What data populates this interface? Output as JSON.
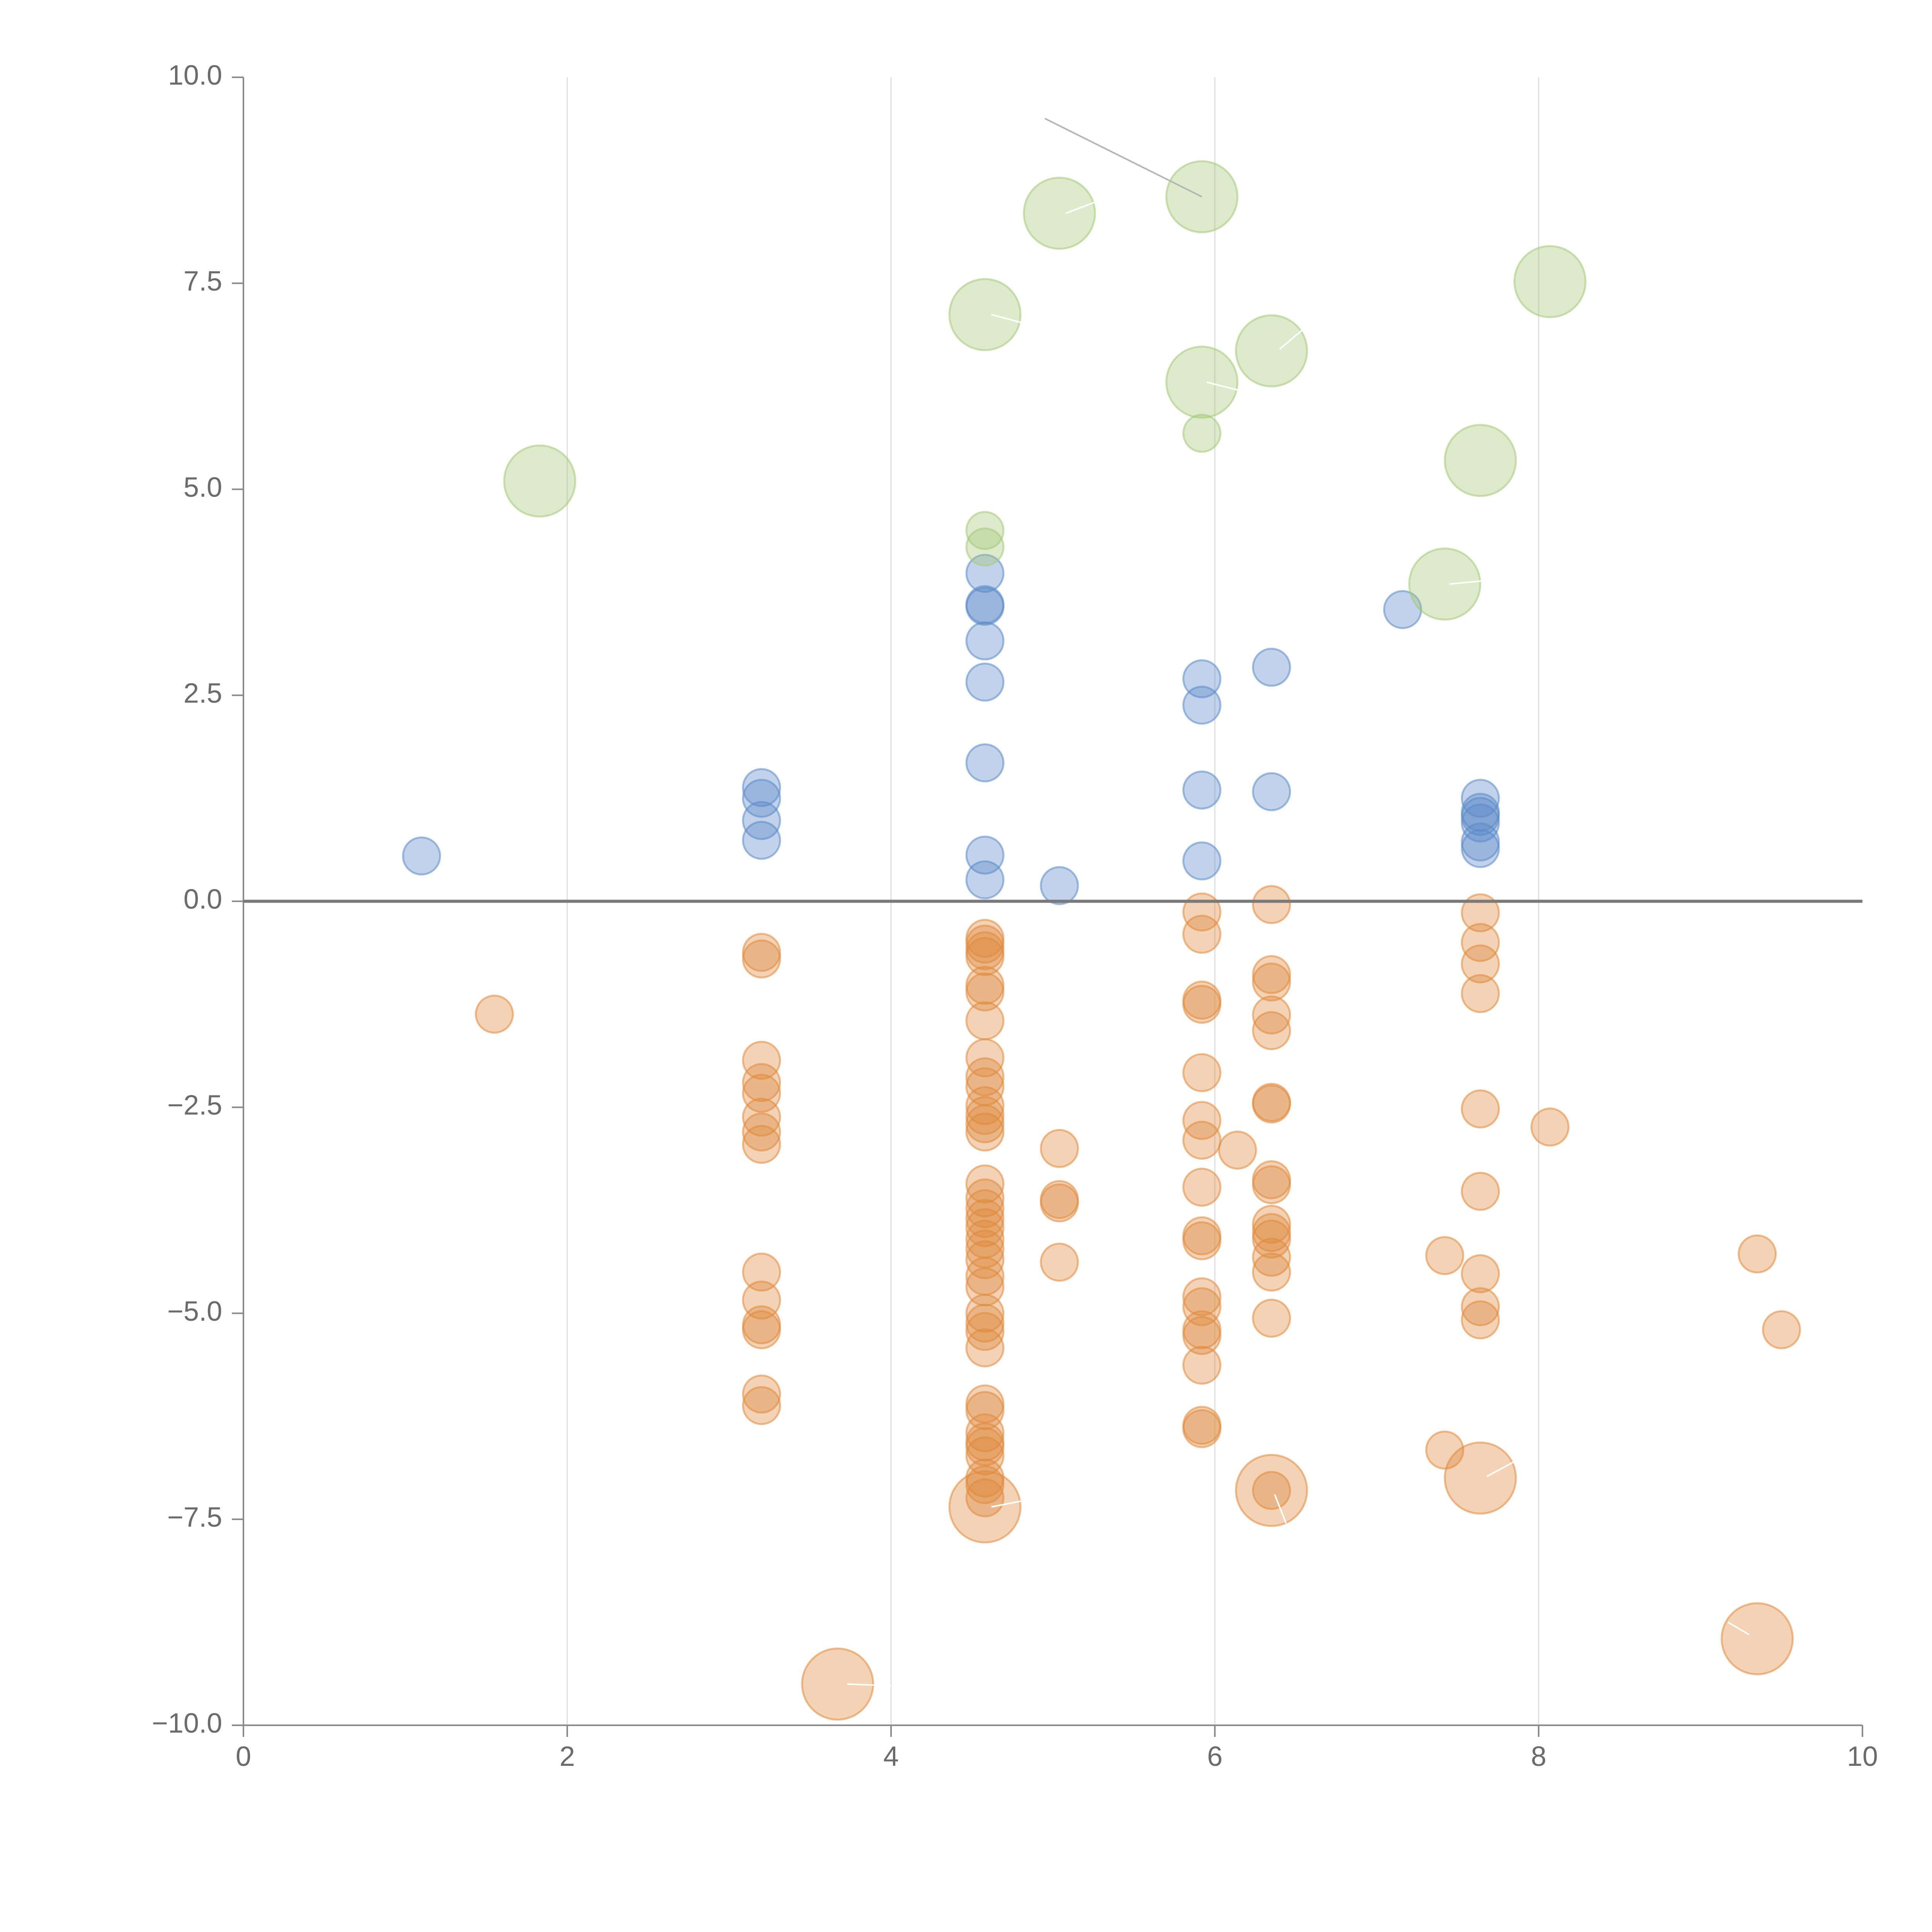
{
  "colors": {
    "positive": "#5b8ac9",
    "negative": "#e08a3c",
    "highlight": "#a6c97a",
    "grid": "#dedede",
    "axis": "#8a8a8a",
    "text": "#6b6b6b",
    "leader_gray": "#b4b4b4",
    "leader_white": "#ffffff"
  },
  "chart_data": {
    "type": "scatter",
    "title": "",
    "xlabel": "",
    "ylabel": "",
    "xlim": [
      0,
      10
    ],
    "ylim": [
      -10,
      10
    ],
    "x_ticks": [
      0,
      2,
      4,
      6,
      8,
      10
    ],
    "x_tick_labels": [
      "0",
      "2",
      "4",
      "6",
      "8",
      "10"
    ],
    "y_ticks": [
      10,
      7.5,
      5,
      2.5,
      0,
      -2.5,
      -5,
      -7.5,
      -10
    ],
    "y_tick_labels": [
      "10.0",
      "7.5",
      "5.0",
      "2.5",
      "0.0",
      "−2.5",
      "−5.0",
      "−7.5",
      "−10.0"
    ],
    "vertical_grid_at": [
      2,
      4,
      6,
      8
    ],
    "reference_line_y": 0,
    "series": [
      {
        "name": "positive",
        "color_key": "positive",
        "size": "small",
        "points": [
          [
            1.1,
            0.55
          ],
          [
            3.2,
            1.38
          ],
          [
            3.2,
            1.25
          ],
          [
            3.2,
            0.98
          ],
          [
            3.2,
            0.74
          ],
          [
            4.58,
            3.98
          ],
          [
            4.58,
            3.6
          ],
          [
            4.58,
            3.58
          ],
          [
            4.58,
            3.16
          ],
          [
            4.58,
            2.66
          ],
          [
            4.58,
            1.68
          ],
          [
            4.58,
            0.56
          ],
          [
            4.58,
            0.26
          ],
          [
            5.04,
            0.19
          ],
          [
            5.92,
            2.7
          ],
          [
            5.92,
            2.38
          ],
          [
            5.92,
            1.35
          ],
          [
            5.92,
            0.49
          ],
          [
            6.35,
            2.84
          ],
          [
            6.35,
            1.33
          ],
          [
            7.16,
            3.54
          ],
          [
            7.64,
            1.25
          ],
          [
            7.64,
            1.08
          ],
          [
            7.64,
            1.03
          ],
          [
            7.64,
            0.95
          ],
          [
            7.64,
            0.72
          ],
          [
            7.64,
            0.64
          ]
        ]
      },
      {
        "name": "negative",
        "color_key": "negative",
        "size": "small",
        "points": [
          [
            1.55,
            -1.37
          ],
          [
            3.2,
            -0.62
          ],
          [
            3.2,
            -0.7
          ],
          [
            3.2,
            -1.93
          ],
          [
            3.2,
            -2.2
          ],
          [
            3.2,
            -2.33
          ],
          [
            3.2,
            -2.62
          ],
          [
            3.2,
            -2.8
          ],
          [
            3.2,
            -2.95
          ],
          [
            3.2,
            -4.5
          ],
          [
            3.2,
            -4.84
          ],
          [
            3.2,
            -5.14
          ],
          [
            3.2,
            -5.2
          ],
          [
            3.2,
            -5.98
          ],
          [
            3.2,
            -6.12
          ],
          [
            4.58,
            -0.45
          ],
          [
            4.58,
            -0.52
          ],
          [
            4.58,
            -0.6
          ],
          [
            4.58,
            -0.67
          ],
          [
            4.58,
            -1.02
          ],
          [
            4.58,
            -1.1
          ],
          [
            4.58,
            -1.45
          ],
          [
            4.58,
            -1.9
          ],
          [
            4.58,
            -2.13
          ],
          [
            4.58,
            -2.25
          ],
          [
            4.58,
            -2.48
          ],
          [
            4.58,
            -2.6
          ],
          [
            4.58,
            -2.7
          ],
          [
            4.58,
            -2.8
          ],
          [
            4.58,
            -3.43
          ],
          [
            4.58,
            -3.6
          ],
          [
            4.58,
            -3.73
          ],
          [
            4.58,
            -3.85
          ],
          [
            4.58,
            -3.96
          ],
          [
            4.58,
            -4.1
          ],
          [
            4.58,
            -4.22
          ],
          [
            4.58,
            -4.35
          ],
          [
            4.58,
            -4.55
          ],
          [
            4.58,
            -4.68
          ],
          [
            4.58,
            -5.0
          ],
          [
            4.58,
            -5.12
          ],
          [
            4.58,
            -5.22
          ],
          [
            4.58,
            -5.42
          ],
          [
            4.58,
            -6.1
          ],
          [
            4.58,
            -6.18
          ],
          [
            4.58,
            -6.45
          ],
          [
            4.58,
            -6.56
          ],
          [
            4.58,
            -6.62
          ],
          [
            4.58,
            -6.73
          ],
          [
            4.58,
            -7.0
          ],
          [
            4.58,
            -7.08
          ],
          [
            4.58,
            -7.24
          ],
          [
            5.04,
            -3.0
          ],
          [
            5.04,
            -3.62
          ],
          [
            5.04,
            -3.66
          ],
          [
            5.04,
            -4.38
          ],
          [
            5.92,
            -0.13
          ],
          [
            5.92,
            -0.4
          ],
          [
            5.92,
            -1.2
          ],
          [
            5.92,
            -1.25
          ],
          [
            5.92,
            -2.08
          ],
          [
            5.92,
            -2.66
          ],
          [
            5.92,
            -2.9
          ],
          [
            5.92,
            -3.47
          ],
          [
            5.92,
            -4.06
          ],
          [
            5.92,
            -4.12
          ],
          [
            5.92,
            -4.8
          ],
          [
            5.92,
            -4.92
          ],
          [
            5.92,
            -5.2
          ],
          [
            5.92,
            -5.27
          ],
          [
            5.92,
            -5.63
          ],
          [
            5.92,
            -6.36
          ],
          [
            5.92,
            -6.4
          ],
          [
            6.14,
            -3.02
          ],
          [
            6.35,
            -0.04
          ],
          [
            6.35,
            -0.89
          ],
          [
            6.35,
            -0.98
          ],
          [
            6.35,
            -1.38
          ],
          [
            6.35,
            -1.57
          ],
          [
            6.35,
            -2.44
          ],
          [
            6.35,
            -2.46
          ],
          [
            6.35,
            -3.38
          ],
          [
            6.35,
            -3.44
          ],
          [
            6.35,
            -3.92
          ],
          [
            6.35,
            -4.02
          ],
          [
            6.35,
            -4.1
          ],
          [
            6.35,
            -4.32
          ],
          [
            6.35,
            -4.5
          ],
          [
            6.35,
            -5.06
          ],
          [
            6.35,
            -7.15
          ],
          [
            7.42,
            -4.3
          ],
          [
            7.42,
            -6.66
          ],
          [
            7.64,
            -0.14
          ],
          [
            7.64,
            -0.5
          ],
          [
            7.64,
            -0.76
          ],
          [
            7.64,
            -1.12
          ],
          [
            7.64,
            -2.52
          ],
          [
            7.64,
            -3.52
          ],
          [
            7.64,
            -4.52
          ],
          [
            7.64,
            -4.92
          ],
          [
            7.64,
            -5.08
          ],
          [
            8.07,
            -2.74
          ],
          [
            9.35,
            -4.28
          ],
          [
            9.5,
            -5.2
          ]
        ]
      },
      {
        "name": "negative-large",
        "color_key": "negative",
        "size": "large",
        "points": [
          [
            3.67,
            -9.5
          ],
          [
            4.58,
            -7.35
          ],
          [
            6.35,
            -7.15
          ],
          [
            7.64,
            -7.0
          ],
          [
            9.35,
            -8.95
          ]
        ]
      },
      {
        "name": "highlight-small",
        "color_key": "highlight",
        "size": "small",
        "points": [
          [
            4.58,
            4.5
          ],
          [
            4.58,
            4.3
          ],
          [
            5.92,
            5.68
          ]
        ]
      },
      {
        "name": "highlight-large",
        "color_key": "highlight",
        "size": "large",
        "points": [
          [
            1.83,
            5.1
          ],
          [
            4.58,
            7.12
          ],
          [
            5.04,
            8.35
          ],
          [
            5.92,
            8.55
          ],
          [
            5.92,
            6.3
          ],
          [
            6.35,
            6.68
          ],
          [
            7.42,
            3.85
          ],
          [
            7.64,
            5.35
          ],
          [
            8.07,
            7.52
          ]
        ]
      }
    ],
    "annotation_leaders": [
      {
        "color_key": "leader_gray",
        "from": [
          4.95,
          9.5
        ],
        "to": [
          5.92,
          8.55
        ]
      },
      {
        "color_key": "leader_white",
        "from": [
          5.08,
          8.35
        ],
        "to": [
          5.28,
          8.5
        ]
      },
      {
        "color_key": "leader_white",
        "from": [
          4.62,
          7.12
        ],
        "to": [
          4.85,
          7.0
        ]
      },
      {
        "color_key": "leader_white",
        "from": [
          5.95,
          6.3
        ],
        "to": [
          6.15,
          6.2
        ]
      },
      {
        "color_key": "leader_white",
        "from": [
          6.4,
          6.7
        ],
        "to": [
          6.55,
          6.95
        ]
      },
      {
        "color_key": "leader_white",
        "from": [
          7.45,
          3.85
        ],
        "to": [
          7.72,
          3.9
        ]
      },
      {
        "color_key": "leader_white",
        "from": [
          3.73,
          -9.5
        ],
        "to": [
          4.0,
          -9.52
        ]
      },
      {
        "color_key": "leader_white",
        "from": [
          4.62,
          -7.35
        ],
        "to": [
          4.88,
          -7.25
        ]
      },
      {
        "color_key": "leader_white",
        "from": [
          6.37,
          -7.2
        ],
        "to": [
          6.44,
          -7.55
        ]
      },
      {
        "color_key": "leader_white",
        "from": [
          7.68,
          -6.98
        ],
        "to": [
          7.85,
          -6.8
        ]
      },
      {
        "color_key": "leader_white",
        "from": [
          9.3,
          -8.9
        ],
        "to": [
          9.17,
          -8.75
        ]
      }
    ]
  }
}
